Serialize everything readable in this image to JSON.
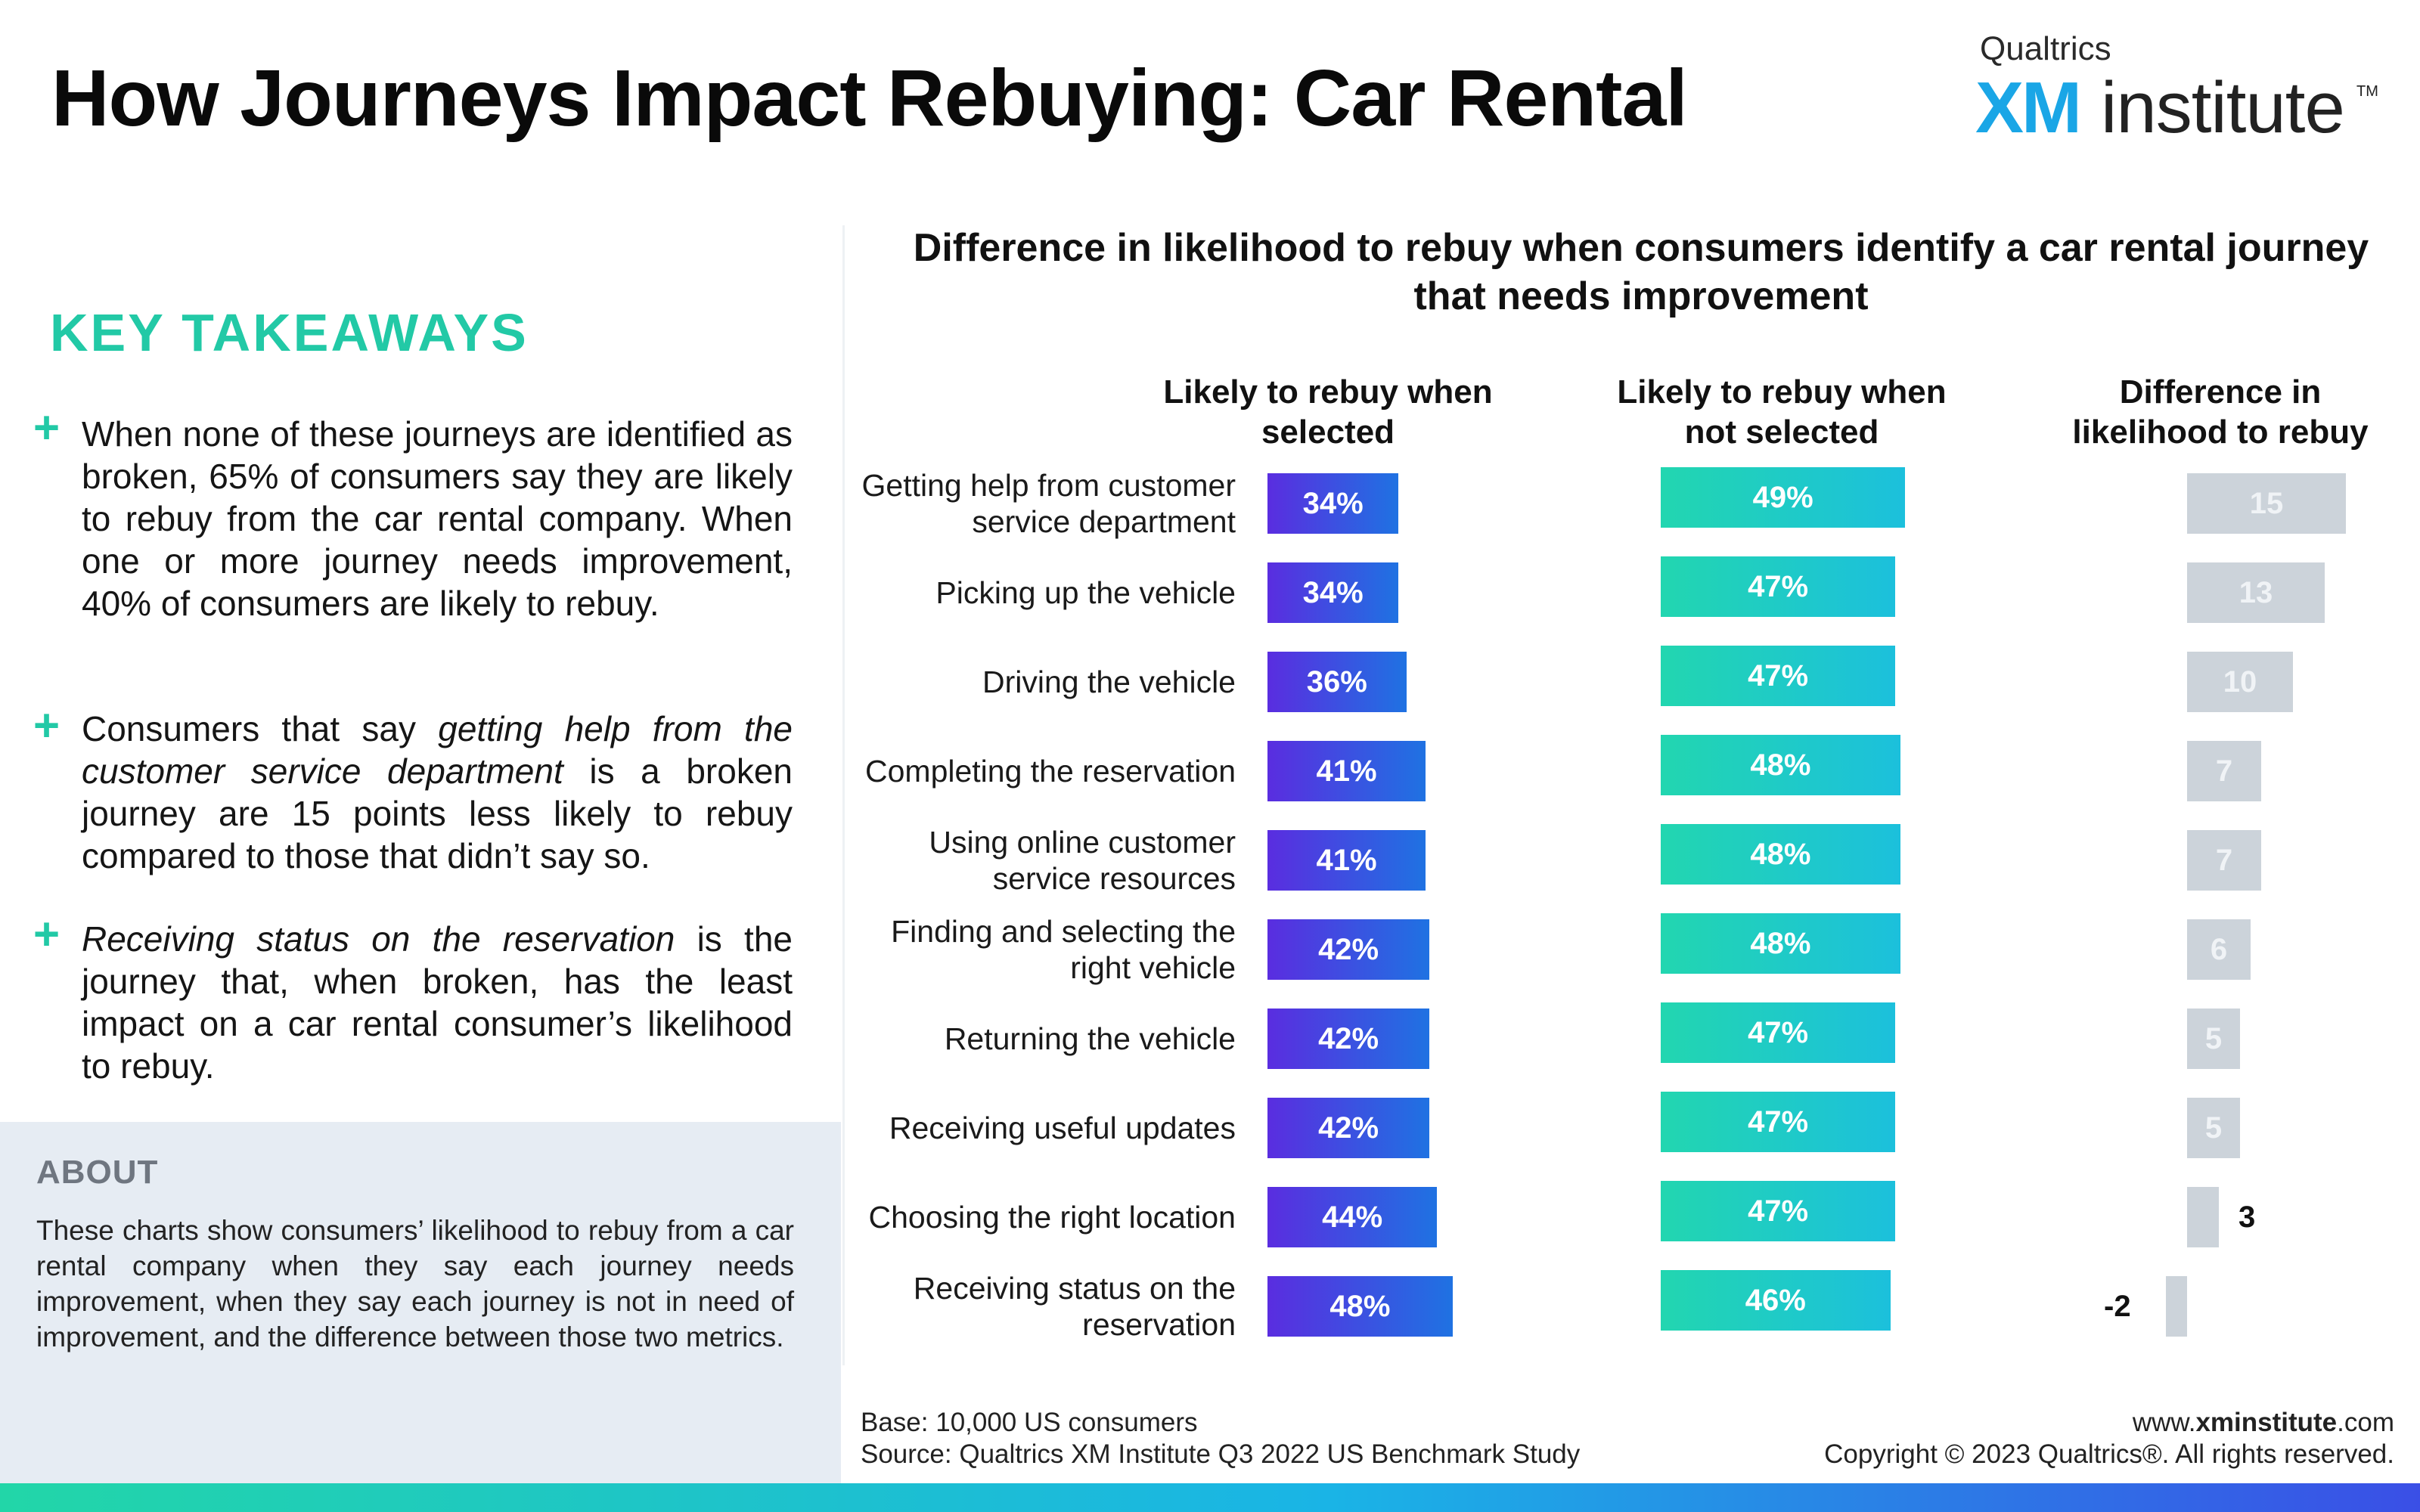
{
  "header": {
    "title": "How Journeys Impact Rebuying: Car Rental",
    "brand_top": "Qualtrics",
    "brand_xm": "XM",
    "brand_rest": "institute",
    "brand_tm": "TM"
  },
  "takeaways": {
    "heading": "KEY TAKEAWAYS",
    "items": [
      {
        "text": "When none of these journeys are identified as broken, 65% of consumers say they are likely to rebuy from the car rental company. When one or more journey needs improvement, 40% of consumers are likely to rebuy."
      },
      {
        "pre": "Consumers that say ",
        "em": "getting help from the customer service department",
        "post": " is a broken journey are 15 points less likely to rebuy compared to those that didn’t say so."
      },
      {
        "pre": "",
        "em": "Receiving status on the reservation",
        "post": " is the journey that, when broken, has the least impact on a car rental consumer’s likelihood to rebuy."
      }
    ]
  },
  "about": {
    "heading": "ABOUT",
    "text": "These charts show consumers’ likelihood to rebuy from a car rental company when they say each journey needs improvement, when they say each journey is not in need of improvement, and the difference between those two metrics."
  },
  "chart_data": {
    "type": "bar",
    "orientation": "horizontal",
    "title": "Difference in likelihood to rebuy when consumers identify a car rental journey that needs improvement",
    "categories": [
      "Getting help from customer service department",
      "Picking up the vehicle",
      "Driving the vehicle",
      "Completing the reservation",
      "Using online customer service resources",
      "Finding and selecting the right vehicle",
      "Returning the vehicle",
      "Receiving useful updates",
      "Choosing the right location",
      "Receiving status on the reservation"
    ],
    "category_lines": [
      [
        "Getting help from customer",
        "service department"
      ],
      [
        "Picking up the vehicle"
      ],
      [
        "Driving the vehicle"
      ],
      [
        "Completing the reservation"
      ],
      [
        "Using online customer",
        "service resources"
      ],
      [
        "Finding and selecting the",
        "right vehicle"
      ],
      [
        "Returning the vehicle"
      ],
      [
        "Receiving useful updates"
      ],
      [
        "Choosing the right location"
      ],
      [
        "Receiving status on the",
        "reservation"
      ]
    ],
    "series": [
      {
        "name": "Likely to rebuy when selected",
        "name_lines": [
          "Likely to rebuy when",
          "selected"
        ],
        "values": [
          34,
          34,
          36,
          41,
          41,
          42,
          42,
          42,
          44,
          48
        ],
        "labels": [
          "34%",
          "34%",
          "36%",
          "41%",
          "41%",
          "42%",
          "42%",
          "42%",
          "44%",
          "48%"
        ],
        "colors": [
          "#5a2de0",
          "#1f72e2"
        ]
      },
      {
        "name": "Likely to rebuy when not selected",
        "name_lines": [
          "Likely to rebuy when",
          "not selected"
        ],
        "values": [
          49,
          47,
          47,
          48,
          48,
          48,
          47,
          47,
          47,
          46
        ],
        "labels": [
          "49%",
          "47%",
          "47%",
          "48%",
          "48%",
          "48%",
          "47%",
          "47%",
          "47%",
          "46%"
        ],
        "colors": [
          "#22d6b0",
          "#1cc0dc"
        ]
      },
      {
        "name": "Difference in likelihood to rebuy",
        "name_lines": [
          "Difference in",
          "likelihood to rebuy"
        ],
        "values": [
          15,
          13,
          10,
          7,
          7,
          6,
          5,
          5,
          3,
          -2
        ],
        "labels": [
          "15",
          "13",
          "10",
          "7",
          "7",
          "6",
          "5",
          "5",
          "3",
          "-2"
        ],
        "colors": [
          "#ccd3da"
        ]
      }
    ],
    "units": "percent / points",
    "legend": "none",
    "grid": false
  },
  "footer": {
    "base": "Base: 10,000 US consumers",
    "source": "Source: Qualtrics XM Institute Q3 2022 US Benchmark Study",
    "site_pre": "www.",
    "site_bold": "xminstitute",
    "site_post": ".com",
    "copyright": "Copyright © 2023 Qualtrics®. All rights reserved."
  }
}
